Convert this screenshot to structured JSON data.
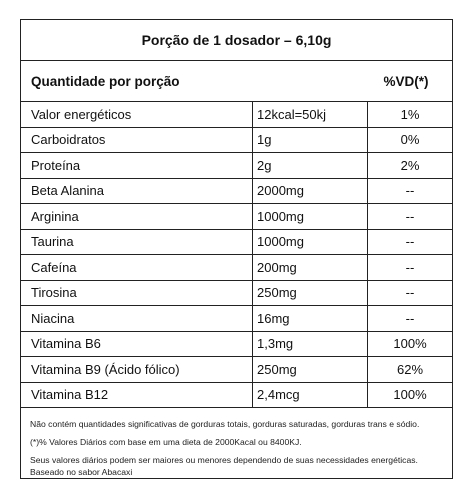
{
  "header": {
    "title": "Porção de 1 dosador – 6,10g"
  },
  "subheader": {
    "quantity_label": "Quantidade por porção",
    "vd_label": "%VD(*)"
  },
  "rows": [
    {
      "name": "Valor energéticos",
      "amount": "12kcal=50kj",
      "vd": "1%"
    },
    {
      "name": "Carboidratos",
      "amount": "1g",
      "vd": "0%"
    },
    {
      "name": "Proteína",
      "amount": "2g",
      "vd": "2%"
    },
    {
      "name": "Beta Alanina",
      "amount": "2000mg",
      "vd": "--"
    },
    {
      "name": "Arginina",
      "amount": "1000mg",
      "vd": "--"
    },
    {
      "name": "Taurina",
      "amount": "1000mg",
      "vd": "--"
    },
    {
      "name": "Cafeína",
      "amount": "200mg",
      "vd": "--"
    },
    {
      "name": "Tirosina",
      "amount": "250mg",
      "vd": "--"
    },
    {
      "name": "Niacina",
      "amount": "16mg",
      "vd": "--"
    },
    {
      "name": "Vitamina B6",
      "amount": "1,3mg",
      "vd": "100%"
    },
    {
      "name": "Vitamina B9 (Ácido fólico)",
      "amount": "250mg",
      "vd": "62%"
    },
    {
      "name": "Vitamina B12",
      "amount": "2,4mcg",
      "vd": "100%"
    }
  ],
  "footer": {
    "note1": "Não contém quantidades significativas de gorduras totais, gorduras saturadas, gorduras trans e sódio.",
    "note2": "(*)% Valores Diários com base em uma dieta de 2000Kacal ou 8400KJ.",
    "note3": "Seus valores diários podem ser maiores ou menores dependendo de suas necessidades energéticas.",
    "note4": "Baseado no sabor Abacaxi"
  }
}
